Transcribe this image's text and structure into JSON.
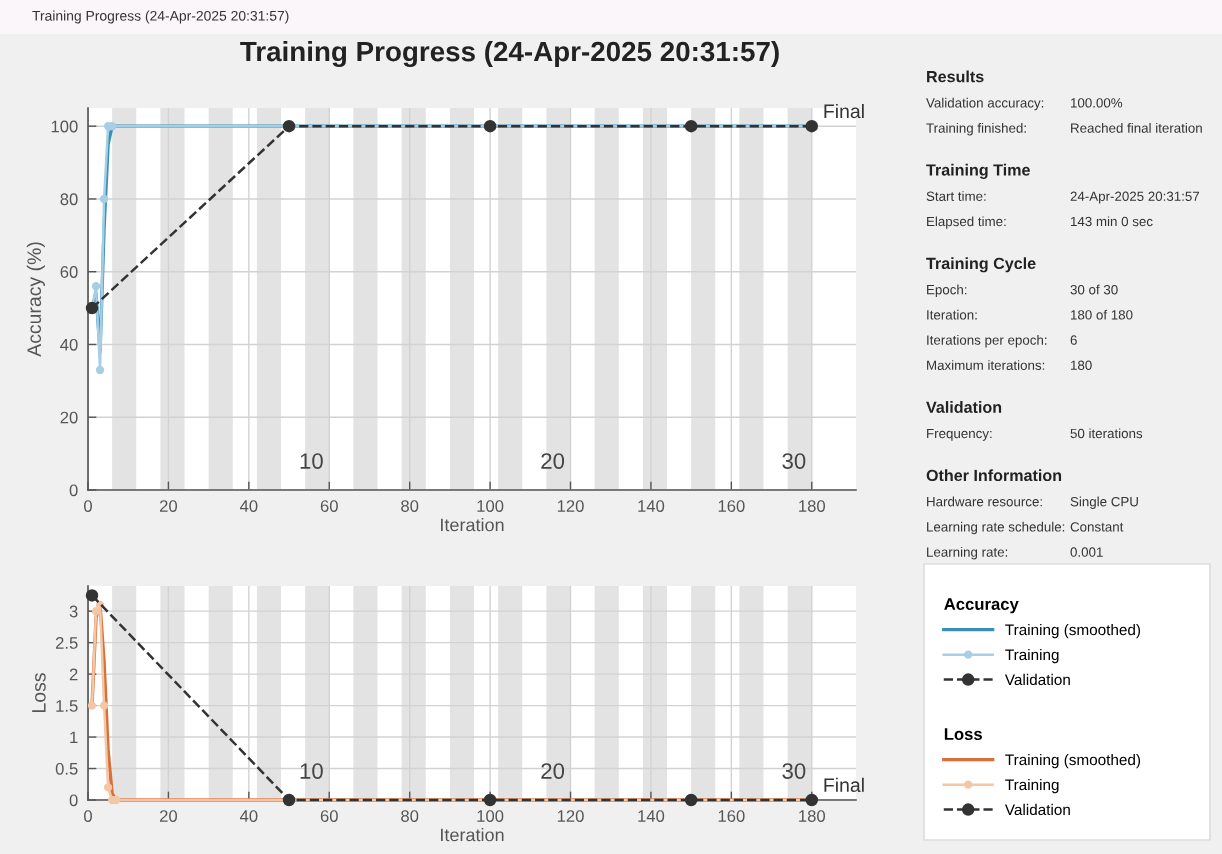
{
  "chart_data": [
    {
      "type": "line",
      "title": "Training Progress (24-Apr-2025 20:31:57)",
      "xlabel": "Iteration",
      "ylabel": "Accuracy (%)",
      "legend_title": "Accuracy",
      "legend": "right",
      "grid": true,
      "xlim": [
        0,
        191
      ],
      "xticks": [
        0,
        20,
        40,
        60,
        80,
        100,
        120,
        140,
        160,
        180
      ],
      "ylim": [
        0,
        105
      ],
      "yticks": [
        0,
        20,
        40,
        60,
        80,
        100
      ],
      "bands": [
        {
          "axis": "x",
          "from": 6,
          "to": 12,
          "color": "#e3e3e3"
        },
        {
          "axis": "x",
          "from": 18,
          "to": 24,
          "color": "#e3e3e3"
        },
        {
          "axis": "x",
          "from": 30,
          "to": 36,
          "color": "#e3e3e3"
        },
        {
          "axis": "x",
          "from": 42,
          "to": 48,
          "color": "#e3e3e3"
        },
        {
          "axis": "x",
          "from": 54,
          "to": 60,
          "color": "#e3e3e3"
        },
        {
          "axis": "x",
          "from": 66,
          "to": 72,
          "color": "#e3e3e3"
        },
        {
          "axis": "x",
          "from": 78,
          "to": 84,
          "color": "#e3e3e3"
        },
        {
          "axis": "x",
          "from": 90,
          "to": 96,
          "color": "#e3e3e3"
        },
        {
          "axis": "x",
          "from": 102,
          "to": 108,
          "color": "#e3e3e3"
        },
        {
          "axis": "x",
          "from": 114,
          "to": 120,
          "color": "#e3e3e3"
        },
        {
          "axis": "x",
          "from": 126,
          "to": 132,
          "color": "#e3e3e3"
        },
        {
          "axis": "x",
          "from": 138,
          "to": 144,
          "color": "#e3e3e3"
        },
        {
          "axis": "x",
          "from": 150,
          "to": 156,
          "color": "#e3e3e3"
        },
        {
          "axis": "x",
          "from": 162,
          "to": 168,
          "color": "#e3e3e3"
        },
        {
          "axis": "x",
          "from": 174,
          "to": 180,
          "color": "#e3e3e3"
        }
      ],
      "series": [
        {
          "name": "Training (smoothed)",
          "color": "#3a8fb7",
          "line_style": "solid",
          "marker": "none",
          "x": [
            1,
            2,
            3,
            4,
            5,
            6,
            180
          ],
          "values": [
            50,
            54,
            38,
            72,
            95,
            100,
            100
          ]
        },
        {
          "name": "Training",
          "color": "#a6cfe6",
          "line_style": "solid",
          "marker": "circle",
          "x": [
            1,
            2,
            3,
            4,
            5,
            6,
            180
          ],
          "values": [
            50,
            56,
            33,
            80,
            100,
            100,
            100
          ]
        },
        {
          "name": "Validation",
          "color": "#333333",
          "line_style": "dashed",
          "marker": "circle",
          "x": [
            1,
            50,
            100,
            150,
            180
          ],
          "values": [
            50,
            100,
            100,
            100,
            100
          ]
        }
      ],
      "annotations": [
        {
          "text": "Final",
          "x": 180,
          "y": 100
        },
        {
          "text": "10",
          "x": 60,
          "y": 0
        },
        {
          "text": "20",
          "x": 120,
          "y": 0
        },
        {
          "text": "30",
          "x": 180,
          "y": 0
        }
      ]
    },
    {
      "type": "line",
      "xlabel": "Iteration",
      "ylabel": "Loss",
      "legend_title": "Loss",
      "legend": "right",
      "grid": true,
      "xlim": [
        0,
        191
      ],
      "xticks": [
        0,
        20,
        40,
        60,
        80,
        100,
        120,
        140,
        160,
        180
      ],
      "ylim": [
        0,
        3.4
      ],
      "yticks": [
        0,
        0.5,
        1,
        1.5,
        2,
        2.5,
        3
      ],
      "bands": [
        {
          "axis": "x",
          "from": 6,
          "to": 12,
          "color": "#e3e3e3"
        },
        {
          "axis": "x",
          "from": 18,
          "to": 24,
          "color": "#e3e3e3"
        },
        {
          "axis": "x",
          "from": 30,
          "to": 36,
          "color": "#e3e3e3"
        },
        {
          "axis": "x",
          "from": 42,
          "to": 48,
          "color": "#e3e3e3"
        },
        {
          "axis": "x",
          "from": 54,
          "to": 60,
          "color": "#e3e3e3"
        },
        {
          "axis": "x",
          "from": 66,
          "to": 72,
          "color": "#e3e3e3"
        },
        {
          "axis": "x",
          "from": 78,
          "to": 84,
          "color": "#e3e3e3"
        },
        {
          "axis": "x",
          "from": 90,
          "to": 96,
          "color": "#e3e3e3"
        },
        {
          "axis": "x",
          "from": 102,
          "to": 108,
          "color": "#e3e3e3"
        },
        {
          "axis": "x",
          "from": 114,
          "to": 120,
          "color": "#e3e3e3"
        },
        {
          "axis": "x",
          "from": 126,
          "to": 132,
          "color": "#e3e3e3"
        },
        {
          "axis": "x",
          "from": 138,
          "to": 144,
          "color": "#e3e3e3"
        },
        {
          "axis": "x",
          "from": 150,
          "to": 156,
          "color": "#e3e3e3"
        },
        {
          "axis": "x",
          "from": 162,
          "to": 168,
          "color": "#e3e3e3"
        },
        {
          "axis": "x",
          "from": 174,
          "to": 180,
          "color": "#e3e3e3"
        }
      ],
      "series": [
        {
          "name": "Training (smoothed)",
          "color": "#d9703a",
          "line_style": "solid",
          "marker": "none",
          "x": [
            1,
            2,
            3,
            4,
            5,
            6,
            7,
            180
          ],
          "values": [
            1.5,
            2.9,
            3.1,
            2.2,
            0.8,
            0.1,
            0,
            0
          ]
        },
        {
          "name": "Training",
          "color": "#f3c6a6",
          "line_style": "solid",
          "marker": "circle",
          "x": [
            1,
            2,
            3,
            4,
            5,
            6,
            7,
            180
          ],
          "values": [
            1.5,
            3.0,
            3.1,
            1.5,
            0.2,
            0,
            0,
            0
          ]
        },
        {
          "name": "Validation",
          "color": "#333333",
          "line_style": "dashed",
          "marker": "circle",
          "x": [
            1,
            50,
            100,
            150,
            180
          ],
          "values": [
            3.25,
            0,
            0,
            0,
            0
          ]
        }
      ],
      "annotations": [
        {
          "text": "Final",
          "x": 180,
          "y": 0
        },
        {
          "text": "10",
          "x": 60,
          "y": 0
        },
        {
          "text": "20",
          "x": 120,
          "y": 0
        },
        {
          "text": "30",
          "x": 180,
          "y": 0
        }
      ]
    },
    {
      "type": "other",
      "title": "Training Progress (24-Apr-2025 20:31:57)"
    },
    {
      "type": "other",
      "title": "Results",
      "annotations": [
        "Validation accuracy:",
        "100.00%",
        "Training finished:",
        "Reached final iteration"
      ]
    },
    {
      "type": "other",
      "title": "Training Time",
      "annotations": [
        "Start time:",
        "24-Apr-2025 20:31:57",
        "Elapsed time:",
        "143 min 0 sec"
      ]
    },
    {
      "type": "other",
      "title": "Training Cycle",
      "annotations": [
        "Epoch:",
        "30 of 30",
        "Iteration:",
        "180 of 180",
        "Iterations per epoch:",
        "6",
        "Maximum iterations:",
        "180"
      ]
    },
    {
      "type": "other",
      "title": "Validation",
      "annotations": [
        "Frequency:",
        "50 iterations"
      ]
    },
    {
      "type": "other",
      "title": "Other Information",
      "annotations": [
        "Hardware resource:",
        "Single CPU",
        "Learning rate schedule:",
        "Constant",
        "Learning rate:",
        "0.001"
      ]
    }
  ]
}
